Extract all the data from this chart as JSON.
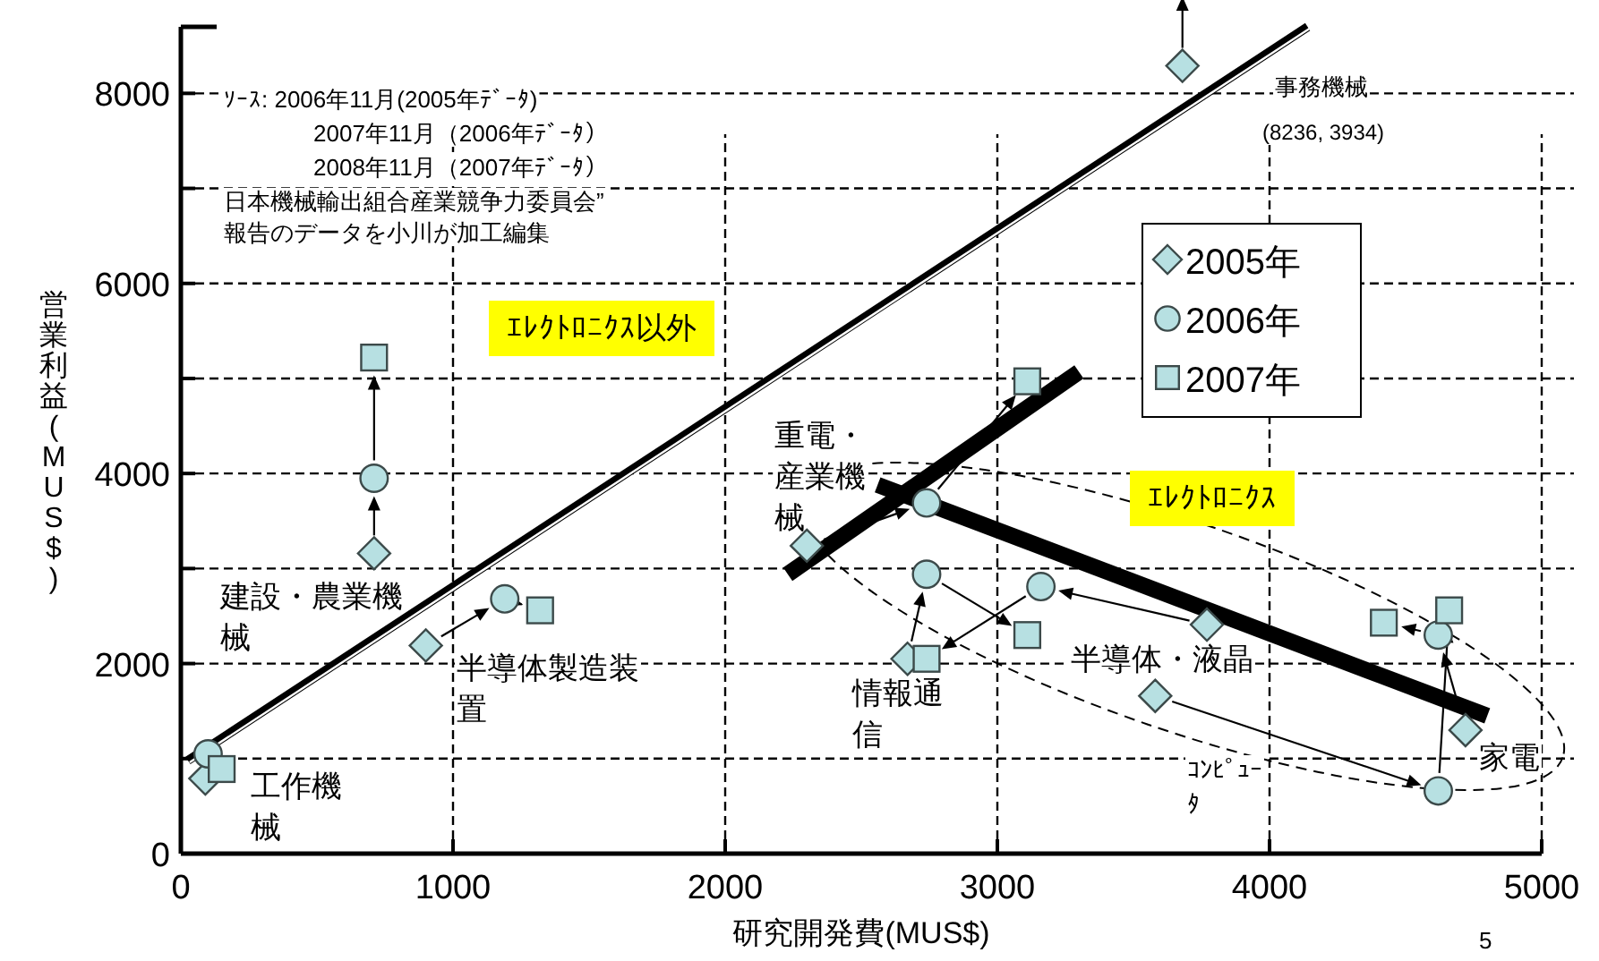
{
  "chart_data": {
    "type": "scatter",
    "xlabel": "研究開発費(MUS$)",
    "ylabel": "営業利益(MUS$)",
    "xlim": [
      0,
      5000
    ],
    "xticks": [
      0,
      1000,
      2000,
      3000,
      4000,
      5000
    ],
    "ylim": [
      0,
      8700
    ],
    "yticks": [
      0,
      {
        "value": 1000,
        "label": null
      },
      2000,
      {
        "value": 3000,
        "label": null
      },
      4000,
      {
        "value": 5000,
        "label": null
      },
      6000,
      {
        "value": 7000,
        "label": null
      },
      8000
    ],
    "grid": true,
    "legend": "right",
    "series": [
      {
        "name": "2005年",
        "type": "scatter",
        "marker": "diamond",
        "color": "#b7e0e2",
        "x": [
          90,
          710,
          900,
          2300,
          2670,
          3770,
          3580,
          4720,
          3680
        ],
        "values": [
          790,
          3160,
          2190,
          3240,
          2050,
          2410,
          1660,
          1300,
          8290
        ]
      },
      {
        "name": "2006年",
        "type": "scatter",
        "marker": "circle",
        "color": "#b7e0e2",
        "x": [
          100,
          710,
          1190,
          2740,
          2740,
          3160,
          4620,
          4620,
          null
        ],
        "values": [
          1050,
          3950,
          2680,
          3690,
          2940,
          2810,
          660,
          2300,
          null
        ]
      },
      {
        "name": "2007年",
        "type": "scatter",
        "marker": "square",
        "color": "#b7e0e2",
        "x": [
          150,
          710,
          1320,
          3110,
          3110,
          2740,
          4660,
          4420,
          null
        ],
        "values": [
          890,
          5220,
          2560,
          4970,
          2300,
          2050,
          2560,
          2430,
          null
        ]
      },
      {
        "type": "line",
        "color": "#000000",
        "x": [
          26,
          4140
        ],
        "values": [
          980,
          8700
        ]
      },
      {
        "type": "line",
        "color": "#000000",
        "x": [
          2230,
          3300
        ],
        "values": [
          2940,
          5070
        ]
      },
      {
        "type": "line",
        "color": "#000000",
        "x": [
          2560,
          4800
        ],
        "values": [
          3880,
          1450
        ]
      }
    ],
    "annotations": [
      "ｿｰｽ:  2006年11月(2005年ﾃﾞｰﾀ)",
      "2007年11月（2006年ﾃﾞｰﾀ）",
      "2008年11月（2007年ﾃﾞｰﾀ）",
      "日本機械輸出組合産業競争力委員会”報告のデータを小川が加工編集",
      "工作機械",
      "建設・農業機械",
      "半導体製造装置",
      {
        "text": "重電・産業機械",
        "x": 2300,
        "y": 3240
      },
      {
        "text": "情報通信",
        "x": 2670,
        "y": 2050
      },
      "半導体・液晶",
      "ｺﾝﾋﾟｭｰﾀ",
      "家電",
      "事務機械",
      "(8236, 3934)",
      "ｴﾚｸﾄﾛﾆｸｽ以外",
      "ｴﾚｸﾄﾛﾆｸｽ",
      "5"
    ]
  }
}
